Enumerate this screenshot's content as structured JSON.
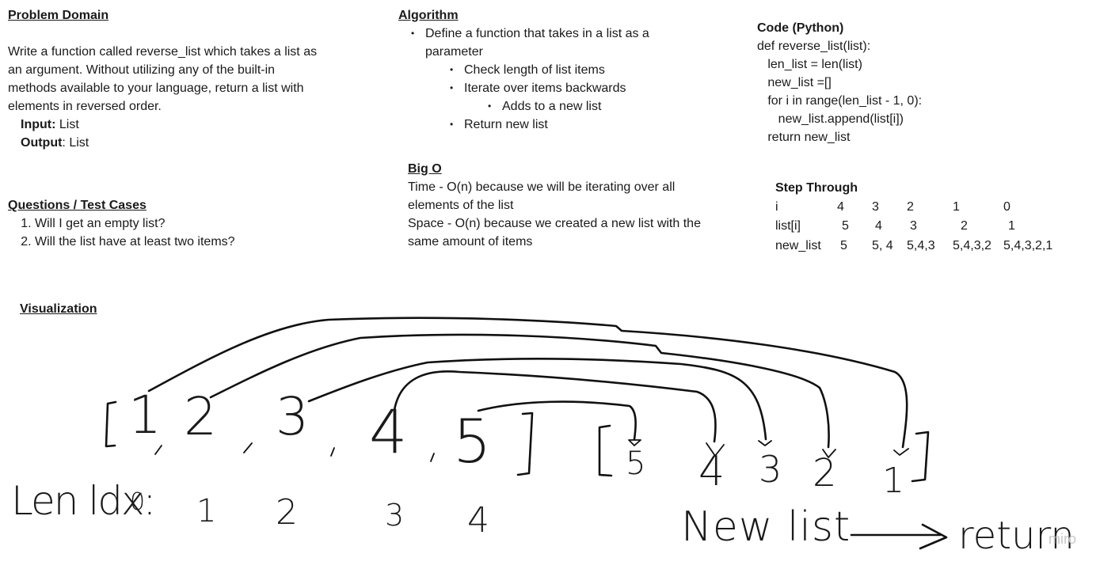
{
  "problem": {
    "heading": "Problem Domain",
    "description": "Write a function called reverse_list which takes a list as an argument. Without utilizing any of the built-in methods available to your language, return a list with elements in reversed order.",
    "input_label": "Input:",
    "input_value": " List",
    "output_label": "Output",
    "output_value": ": List"
  },
  "questions": {
    "heading": "Questions / Test Cases",
    "items": [
      "Will I get an empty list?",
      "Will the list have at least two items?"
    ]
  },
  "algorithm": {
    "heading": "Algorithm",
    "step1": "Define a function that takes in a list as a parameter",
    "step1a": "Check length of list items",
    "step1b": "Iterate over items backwards",
    "step1b_i": "Adds to a new list",
    "step1c": "Return new list"
  },
  "bigo": {
    "heading": "Big O",
    "time": "Time - O(n) because we will be iterating over all elements of the list",
    "space": "Space - O(n) because we created a new list with the same amount of items"
  },
  "code": {
    "heading": "Code (Python)",
    "lines": [
      "def reverse_list(list):",
      "   len_list = len(list)",
      "   new_list =[]",
      "   for i in range(len_list - 1, 0):",
      "      new_list.append(list[i])",
      "   return new_list"
    ]
  },
  "step_through": {
    "heading": "Step Through",
    "rows": [
      {
        "label": "i",
        "values": [
          "4",
          "3",
          "2",
          "1",
          "0"
        ]
      },
      {
        "label": "list[i]",
        "values": [
          "5",
          "4",
          "3",
          "2",
          "1"
        ]
      },
      {
        "label": "new_list",
        "values": [
          "5",
          "5, 4",
          "5,4,3",
          "5,4,3,2",
          "5,4,3,2,1"
        ]
      }
    ]
  },
  "visualization": {
    "heading": "Visualization",
    "input_list": [
      "1",
      "2",
      "3",
      "4",
      "5"
    ],
    "output_list": [
      "5",
      "4",
      "3",
      "2",
      "1"
    ],
    "index_label": "Len ldx:",
    "indices": [
      "0",
      "1",
      "2",
      "3",
      "4"
    ],
    "new_list_caption": "New list",
    "return_caption": "return"
  },
  "watermark": "miro"
}
